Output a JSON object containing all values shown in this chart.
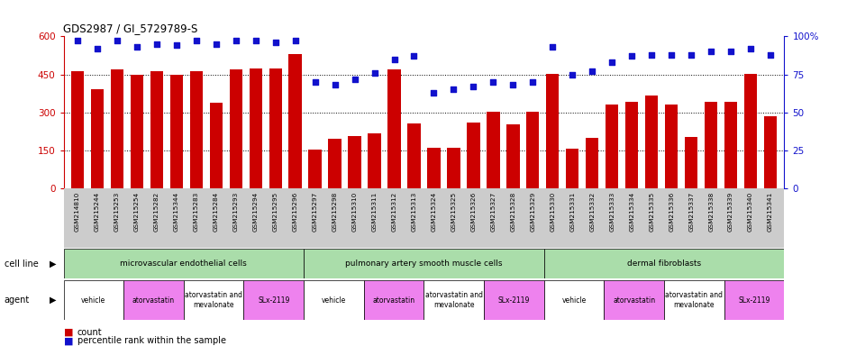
{
  "title": "GDS2987 / GI_5729789-S",
  "samples": [
    "GSM214810",
    "GSM215244",
    "GSM215253",
    "GSM215254",
    "GSM215282",
    "GSM215344",
    "GSM215283",
    "GSM215284",
    "GSM215293",
    "GSM215294",
    "GSM215295",
    "GSM215296",
    "GSM215297",
    "GSM215298",
    "GSM215310",
    "GSM215311",
    "GSM215312",
    "GSM215313",
    "GSM215324",
    "GSM215325",
    "GSM215326",
    "GSM215327",
    "GSM215328",
    "GSM215329",
    "GSM215330",
    "GSM215331",
    "GSM215332",
    "GSM215333",
    "GSM215334",
    "GSM215335",
    "GSM215336",
    "GSM215337",
    "GSM215338",
    "GSM215339",
    "GSM215340",
    "GSM215341"
  ],
  "counts": [
    462,
    390,
    468,
    447,
    462,
    447,
    462,
    340,
    468,
    472,
    472,
    530,
    155,
    198,
    208,
    218,
    470,
    255,
    162,
    162,
    262,
    302,
    252,
    302,
    452,
    158,
    200,
    332,
    342,
    367,
    332,
    202,
    342,
    342,
    452,
    285
  ],
  "percentile": [
    97,
    92,
    97,
    93,
    95,
    94,
    97,
    95,
    97,
    97,
    96,
    97,
    70,
    68,
    72,
    76,
    85,
    87,
    63,
    65,
    67,
    70,
    68,
    70,
    93,
    75,
    77,
    83,
    87,
    88,
    88,
    88,
    90,
    90,
    92,
    88
  ],
  "cell_line_groups": [
    {
      "label": "microvascular endothelial cells",
      "start": 0,
      "end": 12,
      "color": "#aaddaa"
    },
    {
      "label": "pulmonary artery smooth muscle cells",
      "start": 12,
      "end": 24,
      "color": "#aaddaa"
    },
    {
      "label": "dermal fibroblasts",
      "start": 24,
      "end": 36,
      "color": "#aaddaa"
    }
  ],
  "agent_groups": [
    {
      "label": "vehicle",
      "start": 0,
      "end": 3,
      "color": "#FFFFFF"
    },
    {
      "label": "atorvastatin",
      "start": 3,
      "end": 6,
      "color": "#EE82EE"
    },
    {
      "label": "atorvastatin and\nmevalonate",
      "start": 6,
      "end": 9,
      "color": "#FFFFFF"
    },
    {
      "label": "SLx-2119",
      "start": 9,
      "end": 12,
      "color": "#EE82EE"
    },
    {
      "label": "vehicle",
      "start": 12,
      "end": 15,
      "color": "#FFFFFF"
    },
    {
      "label": "atorvastatin",
      "start": 15,
      "end": 18,
      "color": "#EE82EE"
    },
    {
      "label": "atorvastatin and\nmevalonate",
      "start": 18,
      "end": 21,
      "color": "#FFFFFF"
    },
    {
      "label": "SLx-2119",
      "start": 21,
      "end": 24,
      "color": "#EE82EE"
    },
    {
      "label": "vehicle",
      "start": 24,
      "end": 27,
      "color": "#FFFFFF"
    },
    {
      "label": "atorvastatin",
      "start": 27,
      "end": 30,
      "color": "#EE82EE"
    },
    {
      "label": "atorvastatin and\nmevalonate",
      "start": 30,
      "end": 33,
      "color": "#FFFFFF"
    },
    {
      "label": "SLx-2119",
      "start": 33,
      "end": 36,
      "color": "#EE82EE"
    }
  ],
  "bar_color": "#CC0000",
  "dot_color": "#1111CC",
  "ylim_left": [
    0,
    600
  ],
  "ylim_right": [
    0,
    100
  ],
  "yticks_left": [
    0,
    150,
    300,
    450,
    600
  ],
  "yticks_right": [
    0,
    25,
    50,
    75,
    100
  ],
  "background_color": "#FFFFFF",
  "xtick_bg": "#CCCCCC",
  "bar_width": 0.65
}
